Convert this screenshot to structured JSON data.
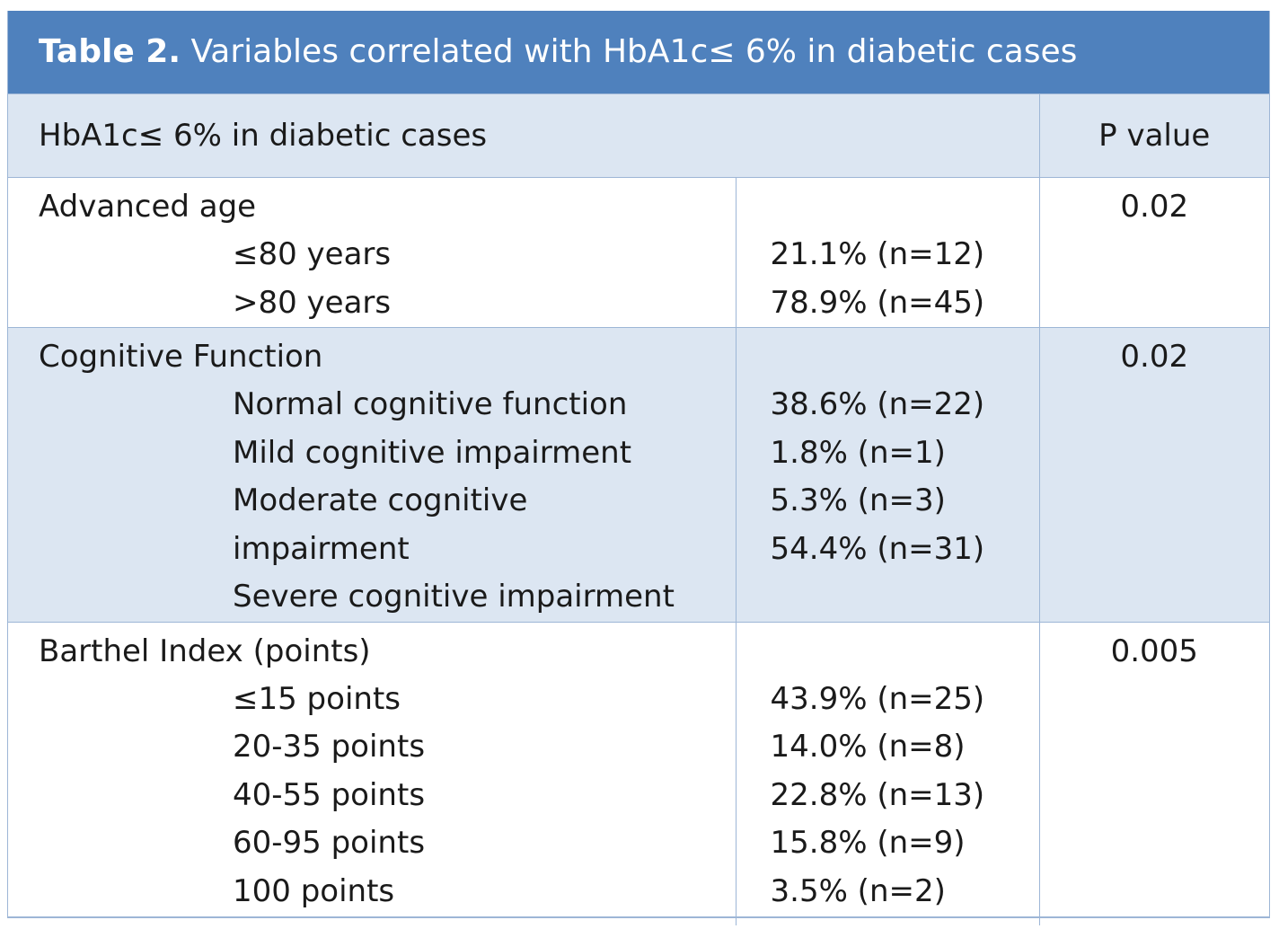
{
  "caption": {
    "label": "Table 2.",
    "text": " Variables correlated with HbA1c≤ 6% in diabetic cases"
  },
  "header": {
    "left": "HbA1c≤ 6% in diabetic cases",
    "right": "P value"
  },
  "groups": [
    {
      "title": "Advanced age",
      "items": [
        "≤80 years",
        ">80 years"
      ],
      "values": [
        "21.1% (n=12)",
        "78.9% (n=45)"
      ],
      "p_value": "0.02"
    },
    {
      "title": "Cognitive Function",
      "items": [
        "Normal cognitive function",
        "Mild cognitive impairment",
        "Moderate cognitive",
        "impairment",
        "Severe cognitive impairment"
      ],
      "values": [
        "38.6% (n=22)",
        "1.8% (n=1)",
        "5.3% (n=3)",
        "54.4% (n=31)"
      ],
      "p_value": "0.02"
    },
    {
      "title": "Barthel Index (points)",
      "items": [
        "≤15 points",
        "20-35 points",
        "40-55 points",
        "60-95 points",
        "100 points"
      ],
      "values": [
        "43.9% (n=25)",
        "14.0% (n=8)",
        "22.8% (n=13)",
        "15.8% (n=9)",
        "3.5% (n=2)"
      ],
      "p_value": "0.005"
    }
  ],
  "colors": {
    "caption_bg": "#4f81bd",
    "shaded_bg": "#dce6f2",
    "border": "#9db6d6"
  }
}
